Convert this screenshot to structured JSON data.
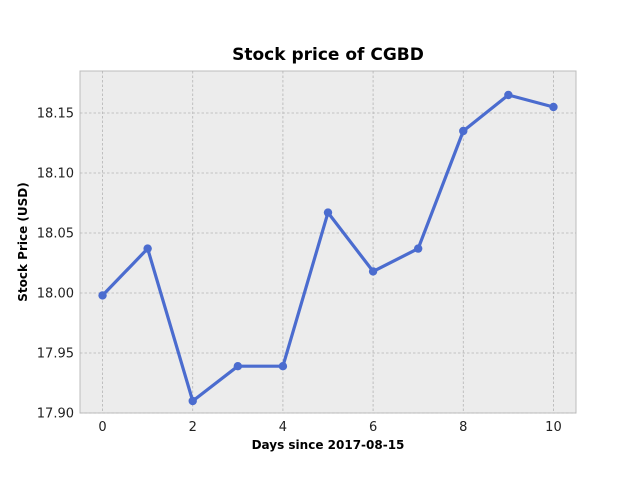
{
  "chart_data": {
    "type": "line",
    "title": "Stock price of CGBD",
    "xlabel": "Days since 2017-08-15",
    "ylabel": "Stock Price (USD)",
    "x": [
      0,
      1,
      2,
      3,
      4,
      5,
      6,
      7,
      8,
      9,
      10
    ],
    "series": [
      {
        "values": [
          17.998,
          18.037,
          17.91,
          17.939,
          17.939,
          18.067,
          18.018,
          18.037,
          18.135,
          18.165,
          18.155
        ]
      }
    ],
    "xlim": [
      -0.5,
      10.5
    ],
    "ylim": [
      17.9,
      18.185
    ],
    "xticks": [
      0,
      2,
      4,
      6,
      8,
      10
    ],
    "yticks": [
      "17.90",
      "17.95",
      "18.00",
      "18.05",
      "18.10",
      "18.15"
    ],
    "grid": true,
    "line_color": "#4b6ccf",
    "background_color": "#ececec"
  }
}
